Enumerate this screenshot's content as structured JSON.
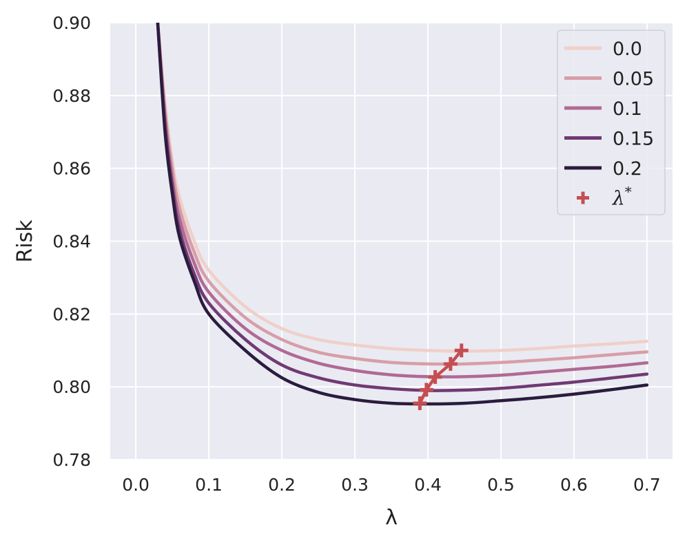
{
  "chart_data": {
    "type": "line",
    "title": "",
    "xlabel": "λ",
    "ylabel": "Risk",
    "xlim": [
      -0.035,
      0.735
    ],
    "ylim": [
      0.78,
      0.9
    ],
    "xticks": [
      0.0,
      0.1,
      0.2,
      0.3,
      0.4,
      0.5,
      0.6,
      0.7
    ],
    "yticks": [
      0.78,
      0.8,
      0.82,
      0.84,
      0.86,
      0.88,
      0.9
    ],
    "xtick_labels": [
      "0.0",
      "0.1",
      "0.2",
      "0.3",
      "0.4",
      "0.5",
      "0.6",
      "0.7"
    ],
    "ytick_labels": [
      "0.78",
      "0.80",
      "0.82",
      "0.84",
      "0.86",
      "0.88",
      "0.90"
    ],
    "grid": true,
    "legend_position": "top-right",
    "x": [
      0.03,
      0.04,
      0.05,
      0.06,
      0.08,
      0.1,
      0.15,
      0.2,
      0.25,
      0.3,
      0.35,
      0.4,
      0.45,
      0.5,
      0.55,
      0.6,
      0.65,
      0.7
    ],
    "series": [
      {
        "name": "0.0",
        "color": "#efd0c9",
        "values": [
          0.9,
          0.878,
          0.862,
          0.852,
          0.84,
          0.832,
          0.822,
          0.816,
          0.813,
          0.8115,
          0.8105,
          0.81,
          0.8098,
          0.81,
          0.8105,
          0.8112,
          0.8118,
          0.8125
        ]
      },
      {
        "name": "0.05",
        "color": "#d79ea8",
        "values": [
          0.9,
          0.876,
          0.86,
          0.849,
          0.837,
          0.829,
          0.819,
          0.813,
          0.8095,
          0.8078,
          0.8067,
          0.8063,
          0.8063,
          0.8067,
          0.8073,
          0.808,
          0.8088,
          0.8096
        ]
      },
      {
        "name": "0.1",
        "color": "#b06a94",
        "values": [
          0.9,
          0.874,
          0.857,
          0.846,
          0.834,
          0.826,
          0.816,
          0.81,
          0.8065,
          0.8045,
          0.8033,
          0.8028,
          0.8028,
          0.8032,
          0.804,
          0.8048,
          0.8056,
          0.8066
        ]
      },
      {
        "name": "0.15",
        "color": "#703a73",
        "values": [
          0.9,
          0.872,
          0.855,
          0.843,
          0.831,
          0.823,
          0.813,
          0.806,
          0.8025,
          0.8005,
          0.7995,
          0.799,
          0.7991,
          0.7996,
          0.8004,
          0.8013,
          0.8024,
          0.8035
        ]
      },
      {
        "name": "0.2",
        "color": "#2a1c3d",
        "values": [
          0.9,
          0.87,
          0.853,
          0.841,
          0.829,
          0.82,
          0.81,
          0.8025,
          0.7985,
          0.7965,
          0.7955,
          0.7953,
          0.7955,
          0.7962,
          0.797,
          0.798,
          0.7992,
          0.8005
        ]
      }
    ],
    "lambda_star": {
      "name": "λ",
      "superscript": "*",
      "color": "#c44e52",
      "points": [
        {
          "x": 0.389,
          "y": 0.7955
        },
        {
          "x": 0.398,
          "y": 0.7992
        },
        {
          "x": 0.41,
          "y": 0.8027
        },
        {
          "x": 0.431,
          "y": 0.8063
        },
        {
          "x": 0.446,
          "y": 0.81
        }
      ]
    }
  }
}
